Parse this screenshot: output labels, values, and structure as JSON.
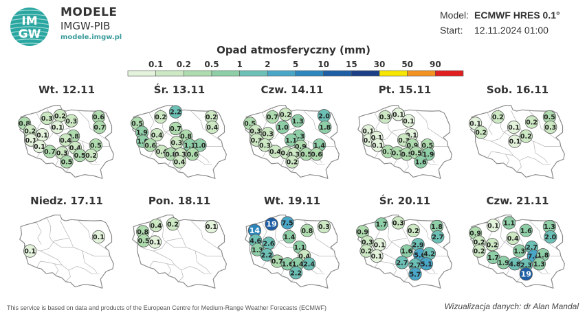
{
  "brand": {
    "logo_text_top": "IM",
    "logo_text_bottom": "GW",
    "title": "MODELE",
    "subtitle": "IMGW-PIB",
    "url": "modele.imgw.pl"
  },
  "meta": {
    "model_label": "Model:",
    "model_value": "ECMWF HRES 0.1°",
    "start_label": "Start:",
    "start_value": "12.11.2024 01:00"
  },
  "legend": {
    "title": "Opad atmosferyczny (mm)",
    "ticks": [
      "0.1",
      "0.2",
      "0.5",
      "1",
      "2",
      "5",
      "10",
      "15",
      "30",
      "50",
      "90"
    ],
    "colors": [
      "#e4f3dc",
      "#cde9c4",
      "#afdcae",
      "#8fcfa8",
      "#6cc0b5",
      "#4aa6c6",
      "#2d86bd",
      "#1d5ea4",
      "#1b3f86",
      "#f7e600",
      "#f29220",
      "#e02020"
    ]
  },
  "footer": {
    "credit": "This service is based on data and products of the European Centre for Medium-Range Weather Forecasts (ECMWF)",
    "author": "Wizualizacja danych: dr Alan Mandal"
  },
  "chart_data": {
    "type": "map",
    "unit": "mm",
    "panels": [
      {
        "title": "Wt. 12.11",
        "values": [
          {
            "lon": 17.0,
            "lat": 53.8,
            "v": "0.3"
          },
          {
            "lon": 18.4,
            "lat": 54.0,
            "v": "0.2"
          },
          {
            "lon": 22.5,
            "lat": 53.9,
            "v": "0.6"
          },
          {
            "lon": 14.6,
            "lat": 53.4,
            "v": "0.8"
          },
          {
            "lon": 19.6,
            "lat": 53.6,
            "v": "0.3"
          },
          {
            "lon": 22.6,
            "lat": 53.1,
            "v": "0.7"
          },
          {
            "lon": 18.1,
            "lat": 53.1,
            "v": "0.1"
          },
          {
            "lon": 15.2,
            "lat": 52.8,
            "v": "0.2"
          },
          {
            "lon": 16.5,
            "lat": 52.5,
            "v": "0.1"
          },
          {
            "lon": 19.8,
            "lat": 52.4,
            "v": "0.8"
          },
          {
            "lon": 15.3,
            "lat": 52.1,
            "v": "0.1"
          },
          {
            "lon": 19.0,
            "lat": 52.1,
            "v": "0.4"
          },
          {
            "lon": 16.2,
            "lat": 51.6,
            "v": "0.1"
          },
          {
            "lon": 22.2,
            "lat": 51.7,
            "v": "0.5"
          },
          {
            "lon": 20.0,
            "lat": 51.5,
            "v": "0.4"
          },
          {
            "lon": 17.3,
            "lat": 51.2,
            "v": "0.7"
          },
          {
            "lon": 18.6,
            "lat": 51.1,
            "v": "0.3"
          },
          {
            "lon": 20.5,
            "lat": 50.9,
            "v": "0.5"
          },
          {
            "lon": 21.7,
            "lat": 50.9,
            "v": "0.2"
          },
          {
            "lon": 19.1,
            "lat": 50.4,
            "v": "0.5"
          }
        ]
      },
      {
        "title": "Śr. 13.11",
        "values": [
          {
            "lon": 18.7,
            "lat": 54.3,
            "v": "2.2"
          },
          {
            "lon": 17.1,
            "lat": 53.9,
            "v": "0.2"
          },
          {
            "lon": 22.5,
            "lat": 53.9,
            "v": "0.2"
          },
          {
            "lon": 14.6,
            "lat": 53.4,
            "v": "0.5"
          },
          {
            "lon": 22.6,
            "lat": 53.1,
            "v": "0.4"
          },
          {
            "lon": 18.7,
            "lat": 53.0,
            "v": "0.7"
          },
          {
            "lon": 15.1,
            "lat": 52.7,
            "v": "1.9"
          },
          {
            "lon": 16.7,
            "lat": 52.5,
            "v": "0.4"
          },
          {
            "lon": 19.8,
            "lat": 52.4,
            "v": "0.8"
          },
          {
            "lon": 15.2,
            "lat": 52.0,
            "v": "1.0"
          },
          {
            "lon": 18.8,
            "lat": 51.9,
            "v": "0.3"
          },
          {
            "lon": 16.0,
            "lat": 51.7,
            "v": "0.6"
          },
          {
            "lon": 20.2,
            "lat": 51.7,
            "v": "1.1"
          },
          {
            "lon": 21.3,
            "lat": 51.7,
            "v": "1.0"
          },
          {
            "lon": 17.2,
            "lat": 51.2,
            "v": "0.4"
          },
          {
            "lon": 18.2,
            "lat": 51.0,
            "v": "0.8"
          },
          {
            "lon": 19.2,
            "lat": 51.0,
            "v": "0.3"
          },
          {
            "lon": 20.5,
            "lat": 51.0,
            "v": "0.6"
          },
          {
            "lon": 19.1,
            "lat": 50.4,
            "v": "0.4"
          }
        ]
      },
      {
        "title": "Czw. 14.11",
        "values": [
          {
            "lon": 17.0,
            "lat": 53.9,
            "v": "0.7"
          },
          {
            "lon": 18.4,
            "lat": 54.1,
            "v": "0.2"
          },
          {
            "lon": 22.5,
            "lat": 54.0,
            "v": "2.0"
          },
          {
            "lon": 14.6,
            "lat": 53.4,
            "v": "0.5"
          },
          {
            "lon": 19.7,
            "lat": 53.6,
            "v": "1.3"
          },
          {
            "lon": 22.6,
            "lat": 53.1,
            "v": "1.8"
          },
          {
            "lon": 18.1,
            "lat": 53.1,
            "v": "1.0"
          },
          {
            "lon": 15.2,
            "lat": 52.8,
            "v": "0.3"
          },
          {
            "lon": 16.5,
            "lat": 52.6,
            "v": "0.3"
          },
          {
            "lon": 19.8,
            "lat": 52.4,
            "v": "1.3"
          },
          {
            "lon": 15.3,
            "lat": 52.1,
            "v": "0.3"
          },
          {
            "lon": 19.0,
            "lat": 52.1,
            "v": "1.1"
          },
          {
            "lon": 16.2,
            "lat": 51.7,
            "v": "0.3"
          },
          {
            "lon": 22.0,
            "lat": 51.7,
            "v": "1.4"
          },
          {
            "lon": 20.0,
            "lat": 51.6,
            "v": "0.9"
          },
          {
            "lon": 17.3,
            "lat": 51.2,
            "v": "0.4"
          },
          {
            "lon": 18.5,
            "lat": 51.1,
            "v": "0.2"
          },
          {
            "lon": 19.3,
            "lat": 51.0,
            "v": "0.3"
          },
          {
            "lon": 20.6,
            "lat": 51.0,
            "v": "0.5"
          },
          {
            "lon": 21.7,
            "lat": 51.0,
            "v": "0.6"
          },
          {
            "lon": 19.1,
            "lat": 50.4,
            "v": "0.2"
          }
        ]
      },
      {
        "title": "Pt. 15.11",
        "values": [
          {
            "lon": 17.0,
            "lat": 53.9,
            "v": "0.3"
          },
          {
            "lon": 18.4,
            "lat": 54.1,
            "v": "0.1"
          },
          {
            "lon": 19.5,
            "lat": 53.6,
            "v": "0.1"
          },
          {
            "lon": 15.2,
            "lat": 52.8,
            "v": "0.1"
          },
          {
            "lon": 15.3,
            "lat": 52.1,
            "v": "0.1"
          },
          {
            "lon": 16.1,
            "lat": 52.3,
            "v": "0.1"
          },
          {
            "lon": 19.8,
            "lat": 52.5,
            "v": "0.1"
          },
          {
            "lon": 19.0,
            "lat": 52.1,
            "v": "0.3"
          },
          {
            "lon": 16.2,
            "lat": 51.7,
            "v": "0.1"
          },
          {
            "lon": 19.9,
            "lat": 51.7,
            "v": "0.9"
          },
          {
            "lon": 21.5,
            "lat": 51.7,
            "v": "0.5"
          },
          {
            "lon": 17.3,
            "lat": 51.2,
            "v": "0.7"
          },
          {
            "lon": 18.3,
            "lat": 51.1,
            "v": "0.7"
          },
          {
            "lon": 19.3,
            "lat": 51.0,
            "v": "0.5"
          },
          {
            "lon": 20.3,
            "lat": 51.1,
            "v": "0.5"
          },
          {
            "lon": 21.6,
            "lat": 51.0,
            "v": "1.9"
          },
          {
            "lon": 20.8,
            "lat": 50.4,
            "v": "1.6"
          }
        ]
      },
      {
        "title": "Sob. 16.11",
        "values": [
          {
            "lon": 17.0,
            "lat": 53.9,
            "v": "0.2"
          },
          {
            "lon": 22.5,
            "lat": 53.9,
            "v": "0.5"
          },
          {
            "lon": 14.6,
            "lat": 53.4,
            "v": "0.1"
          },
          {
            "lon": 20.6,
            "lat": 53.5,
            "v": "0.2"
          },
          {
            "lon": 22.6,
            "lat": 53.1,
            "v": "0.3"
          },
          {
            "lon": 18.7,
            "lat": 53.1,
            "v": "0.1"
          },
          {
            "lon": 15.2,
            "lat": 52.7,
            "v": "0.2"
          },
          {
            "lon": 20.0,
            "lat": 52.4,
            "v": "0.2"
          },
          {
            "lon": 18.8,
            "lat": 52.0,
            "v": "0.1"
          }
        ]
      },
      {
        "title": "Niedz. 17.11",
        "values": [
          {
            "lon": 22.5,
            "lat": 53.1,
            "v": "0.1"
          },
          {
            "lon": 15.2,
            "lat": 52.0,
            "v": "0.1"
          }
        ]
      },
      {
        "title": "Pon. 18.11",
        "values": [
          {
            "lon": 16.6,
            "lat": 54.0,
            "v": "0.4"
          },
          {
            "lon": 18.4,
            "lat": 54.1,
            "v": "0.2"
          },
          {
            "lon": 22.5,
            "lat": 53.9,
            "v": "0.1"
          },
          {
            "lon": 15.2,
            "lat": 53.5,
            "v": "0.8"
          },
          {
            "lon": 15.3,
            "lat": 52.8,
            "v": "0.5"
          },
          {
            "lon": 16.5,
            "lat": 52.7,
            "v": "0.1"
          }
        ]
      },
      {
        "title": "Wt. 19.11",
        "values": [
          {
            "lon": 16.9,
            "lat": 54.1,
            "v": "19"
          },
          {
            "lon": 18.6,
            "lat": 54.2,
            "v": "7.5"
          },
          {
            "lon": 22.5,
            "lat": 53.9,
            "v": "0.3"
          },
          {
            "lon": 15.1,
            "lat": 53.6,
            "v": "14"
          },
          {
            "lon": 20.7,
            "lat": 53.6,
            "v": "0.8"
          },
          {
            "lon": 18.8,
            "lat": 53.1,
            "v": "1.4"
          },
          {
            "lon": 15.2,
            "lat": 52.8,
            "v": "4.6"
          },
          {
            "lon": 16.6,
            "lat": 52.6,
            "v": "2.6"
          },
          {
            "lon": 15.4,
            "lat": 52.1,
            "v": "1.3"
          },
          {
            "lon": 19.9,
            "lat": 52.3,
            "v": "1.1"
          },
          {
            "lon": 16.4,
            "lat": 51.7,
            "v": "2.2"
          },
          {
            "lon": 20.4,
            "lat": 51.6,
            "v": "0.4"
          },
          {
            "lon": 17.5,
            "lat": 51.2,
            "v": "0.7"
          },
          {
            "lon": 18.6,
            "lat": 51.0,
            "v": "1.6"
          },
          {
            "lon": 19.7,
            "lat": 51.0,
            "v": "1.4"
          },
          {
            "lon": 20.9,
            "lat": 51.0,
            "v": "2.4"
          },
          {
            "lon": 19.5,
            "lat": 50.3,
            "v": "2.2"
          }
        ]
      },
      {
        "title": "Śr. 20.11",
        "values": [
          {
            "lon": 16.6,
            "lat": 54.1,
            "v": "1.7"
          },
          {
            "lon": 18.4,
            "lat": 54.2,
            "v": "0.3"
          },
          {
            "lon": 22.5,
            "lat": 53.9,
            "v": "1.8"
          },
          {
            "lon": 14.6,
            "lat": 53.5,
            "v": "0.9"
          },
          {
            "lon": 20.0,
            "lat": 53.6,
            "v": "0.2"
          },
          {
            "lon": 22.6,
            "lat": 53.1,
            "v": "2.7"
          },
          {
            "lon": 15.1,
            "lat": 52.7,
            "v": "0.3"
          },
          {
            "lon": 16.4,
            "lat": 52.5,
            "v": "0.1"
          },
          {
            "lon": 20.5,
            "lat": 52.5,
            "v": "2.9"
          },
          {
            "lon": 15.0,
            "lat": 52.0,
            "v": "0.2"
          },
          {
            "lon": 19.3,
            "lat": 52.0,
            "v": "1.6"
          },
          {
            "lon": 16.1,
            "lat": 51.6,
            "v": "0.1"
          },
          {
            "lon": 20.7,
            "lat": 51.7,
            "v": "5.0"
          },
          {
            "lon": 21.7,
            "lat": 51.8,
            "v": "4.2"
          },
          {
            "lon": 18.8,
            "lat": 51.1,
            "v": "2.7"
          },
          {
            "lon": 20.2,
            "lat": 50.9,
            "v": "2.7"
          },
          {
            "lon": 21.4,
            "lat": 51.0,
            "v": "5.1"
          },
          {
            "lon": 20.2,
            "lat": 50.2,
            "v": "5.7"
          }
        ]
      },
      {
        "title": "Czw. 21.11",
        "values": [
          {
            "lon": 16.5,
            "lat": 54.0,
            "v": "0.1"
          },
          {
            "lon": 18.2,
            "lat": 54.2,
            "v": "1.1"
          },
          {
            "lon": 22.5,
            "lat": 53.9,
            "v": "1.3"
          },
          {
            "lon": 14.6,
            "lat": 53.4,
            "v": "0.9"
          },
          {
            "lon": 20.0,
            "lat": 53.6,
            "v": "1.6"
          },
          {
            "lon": 22.6,
            "lat": 53.1,
            "v": "2.0"
          },
          {
            "lon": 18.6,
            "lat": 53.0,
            "v": "0.4"
          },
          {
            "lon": 15.0,
            "lat": 52.7,
            "v": "0.2"
          },
          {
            "lon": 16.4,
            "lat": 52.5,
            "v": "0.2"
          },
          {
            "lon": 20.6,
            "lat": 52.3,
            "v": "2.7"
          },
          {
            "lon": 15.0,
            "lat": 52.0,
            "v": "0.2"
          },
          {
            "lon": 19.3,
            "lat": 52.0,
            "v": "1.3"
          },
          {
            "lon": 16.5,
            "lat": 51.5,
            "v": "1.7"
          },
          {
            "lon": 20.8,
            "lat": 51.6,
            "v": "7.4"
          },
          {
            "lon": 21.8,
            "lat": 51.7,
            "v": "1.8"
          },
          {
            "lon": 17.6,
            "lat": 51.1,
            "v": "1.9"
          },
          {
            "lon": 18.8,
            "lat": 51.0,
            "v": "4.8"
          },
          {
            "lon": 20.0,
            "lat": 50.9,
            "v": "2.3"
          },
          {
            "lon": 21.4,
            "lat": 51.0,
            "v": "1.3"
          },
          {
            "lon": 20.0,
            "lat": 50.2,
            "v": "19"
          }
        ]
      }
    ]
  }
}
